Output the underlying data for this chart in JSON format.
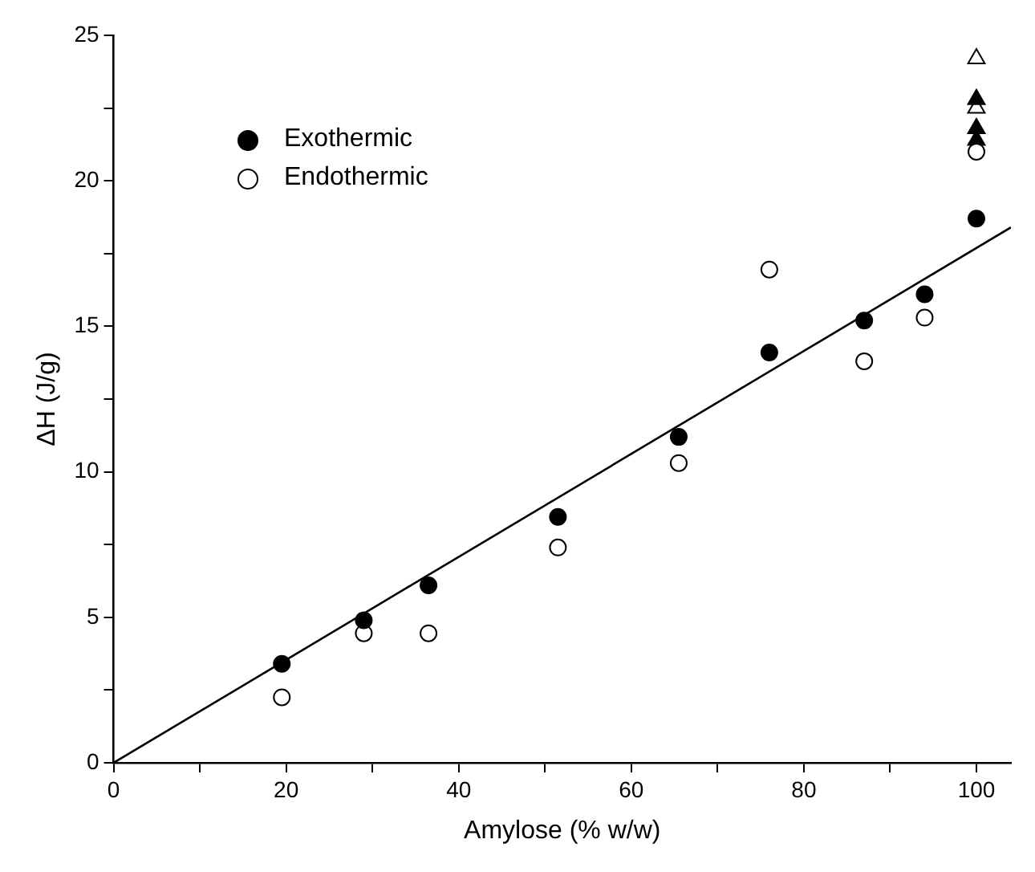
{
  "chart_data": {
    "type": "scatter",
    "xlabel": "Amylose (% w/w)",
    "ylabel": "ΔH (J/g)",
    "xlim": [
      0,
      104
    ],
    "ylim": [
      0,
      25
    ],
    "xticks": [
      0,
      {
        "value": 10,
        "label": null
      },
      20,
      {
        "value": 30,
        "label": null
      },
      40,
      {
        "value": 50,
        "label": null
      },
      60,
      {
        "value": 70,
        "label": null
      },
      80,
      {
        "value": 90,
        "label": null
      },
      100
    ],
    "yticks": [
      0,
      {
        "value": 2.5,
        "label": null
      },
      5,
      {
        "value": 7.5,
        "label": null
      },
      10,
      {
        "value": 12.5,
        "label": null
      },
      15,
      {
        "value": 17.5,
        "label": null
      },
      20,
      {
        "value": 22.5,
        "label": null
      },
      25
    ],
    "grid": false,
    "legend": "top left",
    "series": [
      {
        "name": "Exothermic",
        "color": "#000000",
        "marker": "circle",
        "x": [
          19.5,
          29,
          36.5,
          51.5,
          65.5,
          76,
          87,
          94,
          100
        ],
        "values": [
          3.4,
          4.9,
          6.1,
          8.45,
          11.2,
          14.1,
          15.2,
          16.1,
          18.7
        ]
      },
      {
        "name": "Endothermic",
        "color": "#ffffff",
        "marker": "circle",
        "x": [
          19.5,
          29,
          36.5,
          51.5,
          65.5,
          76,
          87,
          94,
          100
        ],
        "values": [
          2.25,
          4.45,
          4.45,
          7.4,
          10.3,
          16.95,
          13.8,
          15.3,
          21.0
        ]
      },
      {
        "color": "#000000",
        "marker": "triangle",
        "x": [
          100,
          100,
          100
        ],
        "values": [
          22.8,
          21.8,
          21.4
        ]
      },
      {
        "color": "#ffffff",
        "marker": "triangle",
        "x": [
          100,
          100
        ],
        "values": [
          24.2,
          22.5
        ]
      },
      {
        "type": "line",
        "color": "#000000",
        "marker": "none",
        "x": [
          0,
          104
        ],
        "values": [
          0,
          18.4
        ]
      }
    ]
  }
}
